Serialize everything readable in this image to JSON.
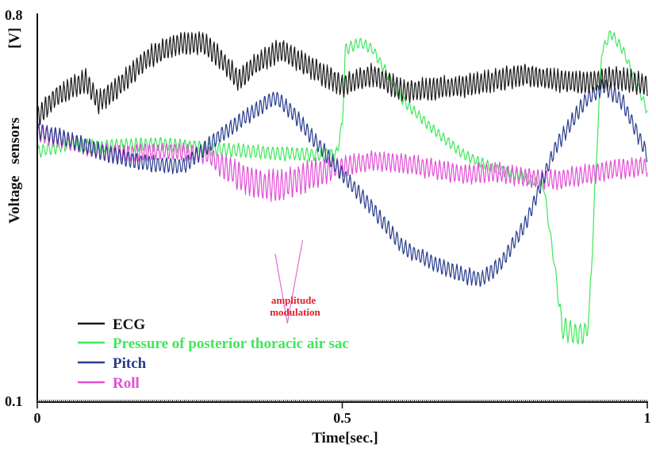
{
  "chart_data": {
    "type": "line",
    "xlabel": "Time[sec.]",
    "ylabel": "Voltage   sensors",
    "yunit": "[V]",
    "xlim": [
      0,
      1
    ],
    "ylim": [
      0.1,
      0.8
    ],
    "xticks": [
      {
        "value": 0,
        "label": "0"
      },
      {
        "value": 0.5,
        "label": "0.5"
      },
      {
        "value": 1,
        "label": "1"
      }
    ],
    "yticks": [
      {
        "value": 0.8,
        "label": "0.8"
      },
      {
        "value": 0.1,
        "label": "0.1"
      }
    ],
    "legend_position": "bottom-left",
    "annotation": {
      "lines": [
        "amplitude",
        "modulation"
      ],
      "color": "#e0202a",
      "pointer_color": "#e56ad6",
      "anchor": {
        "x": 0.41,
        "y": 0.242
      },
      "targets": [
        {
          "x": 0.39,
          "y": 0.367
        },
        {
          "x": 0.435,
          "y": 0.392
        }
      ]
    },
    "series": [
      {
        "name": "ECG",
        "color": "#1a1a1a",
        "base": [
          [
            0,
            0.612
          ],
          [
            0.03,
            0.65
          ],
          [
            0.08,
            0.68
          ],
          [
            0.1,
            0.64
          ],
          [
            0.13,
            0.665
          ],
          [
            0.18,
            0.72
          ],
          [
            0.23,
            0.745
          ],
          [
            0.27,
            0.748
          ],
          [
            0.3,
            0.72
          ],
          [
            0.33,
            0.68
          ],
          [
            0.36,
            0.71
          ],
          [
            0.4,
            0.735
          ],
          [
            0.43,
            0.715
          ],
          [
            0.5,
            0.67
          ],
          [
            0.55,
            0.69
          ],
          [
            0.6,
            0.66
          ],
          [
            0.65,
            0.665
          ],
          [
            0.7,
            0.67
          ],
          [
            0.75,
            0.68
          ],
          [
            0.8,
            0.69
          ],
          [
            0.85,
            0.68
          ],
          [
            0.9,
            0.675
          ],
          [
            0.95,
            0.685
          ],
          [
            1,
            0.67
          ]
        ],
        "amp": [
          [
            0,
            0.018
          ],
          [
            1,
            0.018
          ]
        ],
        "period": 0.006
      },
      {
        "name": "Pressure of posterior thoracic air sac",
        "color": "#3ee85a",
        "base": [
          [
            0,
            0.55
          ],
          [
            0.05,
            0.565
          ],
          [
            0.1,
            0.56
          ],
          [
            0.2,
            0.565
          ],
          [
            0.3,
            0.555
          ],
          [
            0.4,
            0.548
          ],
          [
            0.49,
            0.545
          ],
          [
            0.5,
            0.6
          ],
          [
            0.505,
            0.735
          ],
          [
            0.53,
            0.748
          ],
          [
            0.55,
            0.735
          ],
          [
            0.6,
            0.642
          ],
          [
            0.65,
            0.59
          ],
          [
            0.7,
            0.545
          ],
          [
            0.75,
            0.52
          ],
          [
            0.8,
            0.505
          ],
          [
            0.83,
            0.49
          ],
          [
            0.835,
            0.45
          ],
          [
            0.85,
            0.33
          ],
          [
            0.86,
            0.235
          ],
          [
            0.88,
            0.222
          ],
          [
            0.9,
            0.225
          ],
          [
            0.905,
            0.26
          ],
          [
            0.915,
            0.5
          ],
          [
            0.925,
            0.73
          ],
          [
            0.94,
            0.765
          ],
          [
            0.96,
            0.735
          ],
          [
            1,
            0.625
          ]
        ],
        "amp": [
          [
            0,
            0.011
          ],
          [
            0.5,
            0.011
          ],
          [
            0.53,
            0.008
          ],
          [
            0.85,
            0.008
          ],
          [
            0.86,
            0.018
          ],
          [
            0.9,
            0.018
          ],
          [
            0.92,
            0.008
          ],
          [
            1,
            0.008
          ]
        ],
        "period": 0.008
      },
      {
        "name": "Pitch",
        "color": "#283c8c",
        "base": [
          [
            0,
            0.59
          ],
          [
            0.06,
            0.57
          ],
          [
            0.12,
            0.545
          ],
          [
            0.18,
            0.53
          ],
          [
            0.24,
            0.525
          ],
          [
            0.3,
            0.58
          ],
          [
            0.35,
            0.62
          ],
          [
            0.39,
            0.65
          ],
          [
            0.42,
            0.62
          ],
          [
            0.45,
            0.578
          ],
          [
            0.5,
            0.51
          ],
          [
            0.55,
            0.448
          ],
          [
            0.6,
            0.378
          ],
          [
            0.65,
            0.35
          ],
          [
            0.7,
            0.328
          ],
          [
            0.73,
            0.322
          ],
          [
            0.76,
            0.35
          ],
          [
            0.8,
            0.42
          ],
          [
            0.85,
            0.56
          ],
          [
            0.9,
            0.645
          ],
          [
            0.93,
            0.67
          ],
          [
            0.96,
            0.64
          ],
          [
            1,
            0.545
          ]
        ],
        "amp": [
          [
            0,
            0.013
          ],
          [
            1,
            0.013
          ]
        ],
        "period": 0.007
      },
      {
        "name": "Roll",
        "color": "#e34fd6",
        "base": [
          [
            0,
            0.585
          ],
          [
            0.05,
            0.57
          ],
          [
            0.1,
            0.552
          ],
          [
            0.15,
            0.548
          ],
          [
            0.2,
            0.552
          ],
          [
            0.25,
            0.55
          ],
          [
            0.28,
            0.545
          ],
          [
            0.3,
            0.528
          ],
          [
            0.33,
            0.508
          ],
          [
            0.37,
            0.49
          ],
          [
            0.4,
            0.49
          ],
          [
            0.45,
            0.51
          ],
          [
            0.5,
            0.525
          ],
          [
            0.55,
            0.535
          ],
          [
            0.6,
            0.53
          ],
          [
            0.65,
            0.52
          ],
          [
            0.7,
            0.51
          ],
          [
            0.75,
            0.515
          ],
          [
            0.8,
            0.505
          ],
          [
            0.85,
            0.5
          ],
          [
            0.9,
            0.51
          ],
          [
            0.95,
            0.52
          ],
          [
            1,
            0.525
          ]
        ],
        "amp": [
          [
            0,
            0.014
          ],
          [
            0.28,
            0.014
          ],
          [
            0.33,
            0.024
          ],
          [
            0.45,
            0.024
          ],
          [
            0.5,
            0.016
          ],
          [
            1,
            0.016
          ]
        ],
        "period": 0.007
      }
    ]
  }
}
